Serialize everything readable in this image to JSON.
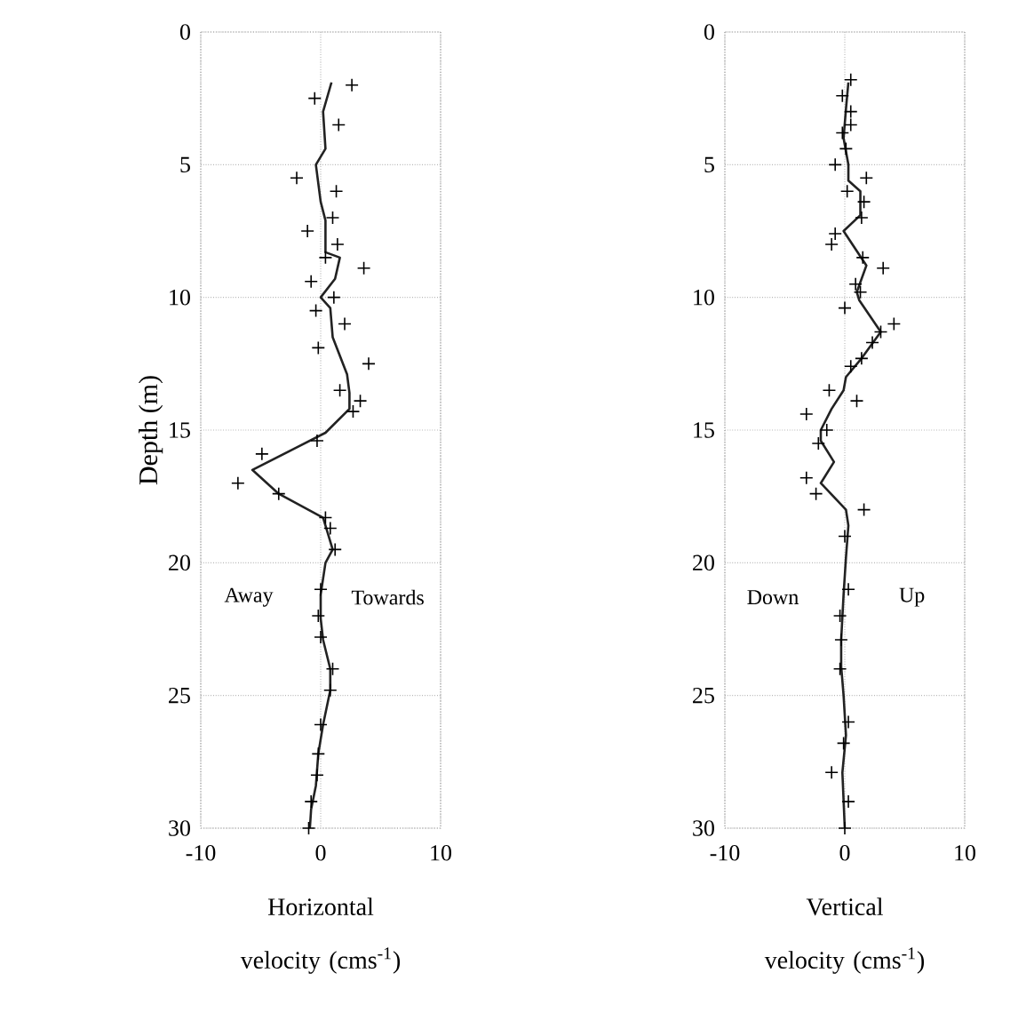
{
  "chart_data": [
    {
      "type": "line",
      "xlabel": "Horizontal velocity (cms$^{-1}$)",
      "ylabel": "Depth (m)",
      "xlim": [
        -10,
        10
      ],
      "ylim": [
        30,
        0
      ],
      "xticks": [
        -10,
        0,
        10
      ],
      "yticks": [
        0,
        5,
        10,
        15,
        20,
        25,
        30
      ],
      "grid": true,
      "annotations": [
        "Away",
        "Towards"
      ],
      "series": [
        {
          "type": "line",
          "color": "#222222",
          "marker": "none",
          "x": [
            0.9,
            0.2,
            0.4,
            -0.4,
            0,
            0.4,
            0.4,
            1.6,
            1.2,
            0,
            0.8,
            1.0,
            2.2,
            2.4,
            2.4,
            0.4,
            -2.2,
            -5.7,
            -3.5,
            0.2,
            0.6,
            1.0,
            0.4,
            0,
            0,
            0.2,
            0.8,
            0.8,
            0.2,
            -0.2,
            -0.4,
            -0.8,
            -0.9
          ],
          "values": [
            1.9,
            3.0,
            4.4,
            5.0,
            6.4,
            7.1,
            8.3,
            8.5,
            9.3,
            10.0,
            10.4,
            11.5,
            12.9,
            13.6,
            14.2,
            15.1,
            15.7,
            16.5,
            17.4,
            18.3,
            18.9,
            19.5,
            20.0,
            21.2,
            22.1,
            22.9,
            24.0,
            24.8,
            26.1,
            27.2,
            28.4,
            29.3,
            30.0
          ]
        },
        {
          "type": "scatter",
          "color": "#000000",
          "marker": "cross",
          "x": [
            2.6,
            -0.5,
            1.5,
            -2.0,
            1.3,
            1.0,
            -1.1,
            1.4,
            0.4,
            3.6,
            -0.8,
            1.1,
            -0.4,
            2.0,
            -0.2,
            4.0,
            1.6,
            3.3,
            2.7,
            -0.3,
            -4.9,
            -6.9,
            -3.5,
            0.4,
            0.8,
            1.2,
            0,
            -0.2,
            0,
            1.0,
            0.8,
            0,
            -0.2,
            -0.3,
            -0.8,
            -1.0
          ],
          "values": [
            2.0,
            2.5,
            3.5,
            5.5,
            6.0,
            7.0,
            7.5,
            8.0,
            8.5,
            8.9,
            9.4,
            10.0,
            10.5,
            11.0,
            11.9,
            12.5,
            13.5,
            13.9,
            14.3,
            15.4,
            15.9,
            17.0,
            17.4,
            18.3,
            18.7,
            19.5,
            21.0,
            22.0,
            22.8,
            24.0,
            24.8,
            26.1,
            27.2,
            28.0,
            29.0,
            30.0
          ]
        }
      ]
    },
    {
      "type": "line",
      "xlabel": "Vertical velocity (cms$^{-1}$)",
      "xlim": [
        -10,
        10
      ],
      "ylim": [
        30,
        0
      ],
      "xticks": [
        -10,
        0,
        10
      ],
      "yticks": [
        0,
        5,
        10,
        15,
        20,
        25,
        30
      ],
      "grid": true,
      "annotations": [
        "Down",
        "Up"
      ],
      "series": [
        {
          "type": "line",
          "color": "#222222",
          "marker": "none",
          "x": [
            0.3,
            0.1,
            -0.1,
            0.3,
            0.3,
            1.3,
            1.3,
            -0.1,
            1.8,
            1.0,
            1.2,
            3.0,
            1.4,
            0.1,
            -0.1,
            -1.1,
            -2.0,
            -2.0,
            -0.9,
            -2.0,
            0.1,
            0.3,
            0.1,
            -0.1,
            -0.3,
            -0.3,
            -0.1,
            0.1,
            -0.2,
            0
          ],
          "values": [
            1.9,
            2.9,
            4.0,
            5.0,
            5.6,
            6.0,
            6.9,
            7.5,
            8.8,
            9.8,
            10.1,
            11.3,
            12.3,
            13.0,
            13.5,
            14.2,
            15.0,
            15.4,
            16.2,
            17.0,
            18.0,
            18.6,
            19.8,
            21.2,
            22.9,
            23.9,
            25.0,
            26.5,
            27.9,
            30.0
          ]
        },
        {
          "type": "scatter",
          "color": "#000000",
          "marker": "cross",
          "x": [
            0.5,
            -0.2,
            0.5,
            0.5,
            -0.2,
            0.1,
            -0.8,
            1.8,
            0.2,
            1.6,
            1.4,
            -0.8,
            -1.1,
            1.5,
            3.2,
            0.9,
            1.3,
            0.0,
            4.1,
            3.0,
            2.3,
            1.4,
            0.5,
            -1.3,
            1.0,
            -3.2,
            -1.5,
            -2.2,
            -3.2,
            -2.4,
            1.6,
            0,
            0.3,
            -0.4,
            -0.3,
            -0.4,
            0.3,
            -0.1,
            -1.1,
            0.3,
            0
          ],
          "values": [
            1.8,
            2.4,
            3.0,
            3.5,
            3.8,
            4.4,
            5.0,
            5.5,
            6.0,
            6.4,
            7.0,
            7.6,
            8.0,
            8.5,
            8.9,
            9.5,
            9.8,
            10.4,
            11.0,
            11.3,
            11.7,
            12.3,
            12.6,
            13.5,
            13.9,
            14.4,
            15.0,
            15.5,
            16.8,
            17.4,
            18.0,
            19.0,
            21.0,
            22.0,
            22.9,
            24.0,
            26.0,
            26.8,
            27.9,
            29.0,
            30.0
          ]
        }
      ]
    }
  ]
}
